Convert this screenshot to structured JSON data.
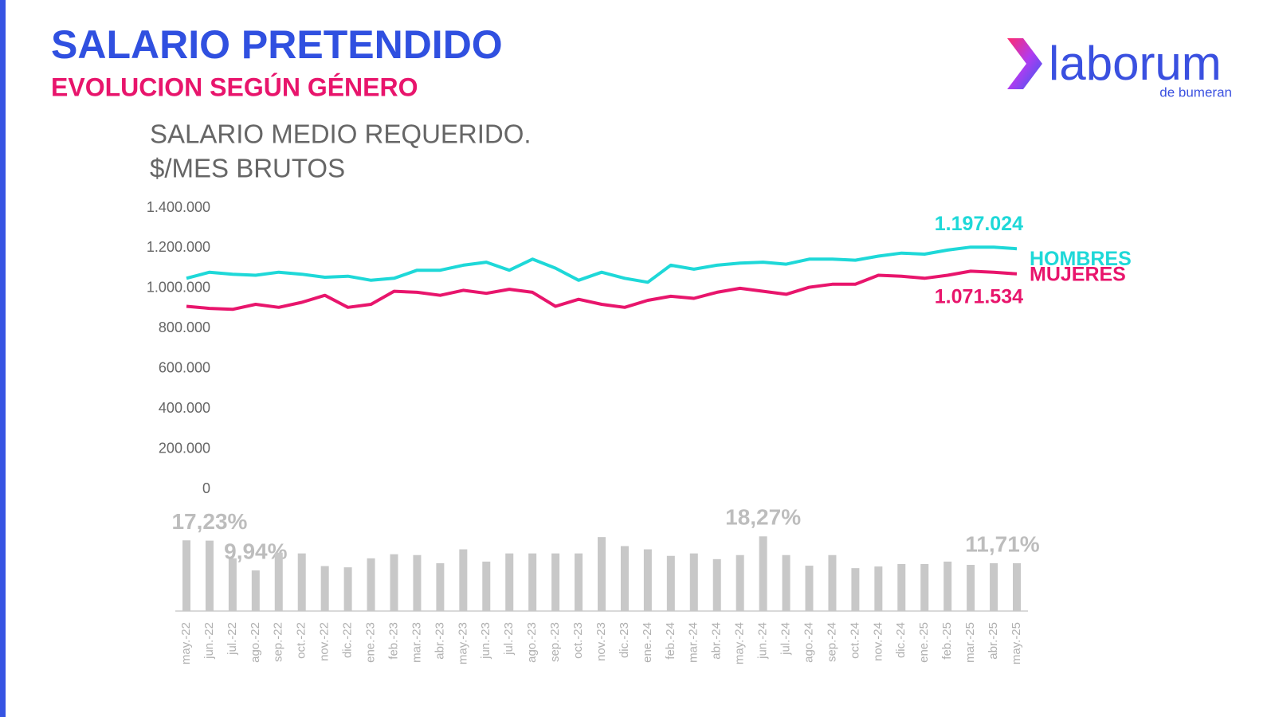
{
  "header": {
    "title": "SALARIO PRETENDIDO",
    "subtitle": "EVOLUCION SEGÚN GÉNERO"
  },
  "logo": {
    "name": "laborum",
    "tagline": "de bumeran"
  },
  "chart_data": [
    {
      "type": "line",
      "title": "SALARIO MEDIO REQUERIDO.",
      "subtitle": "$/MES BRUTOS",
      "ylim": [
        0,
        1400000
      ],
      "yticks": [
        0,
        {
          "value": 200000,
          "label": "200.000"
        },
        {
          "value": 400000,
          "label": "400.000"
        },
        {
          "value": 600000,
          "label": "600.000"
        },
        {
          "value": 800000,
          "label": "800.000"
        },
        {
          "value": 1000000,
          "label": "1.000.000"
        },
        {
          "value": 1200000,
          "label": "1.200.000"
        },
        {
          "value": 1400000,
          "label": "1.400.000"
        }
      ],
      "series": [
        {
          "name": "HOMBRES",
          "color": "#1ed8d8",
          "values": [
            1050000,
            1080000,
            1070000,
            1065000,
            1080000,
            1070000,
            1055000,
            1060000,
            1040000,
            1050000,
            1090000,
            1090000,
            1115000,
            1130000,
            1090000,
            1145000,
            1100000,
            1040000,
            1080000,
            1050000,
            1030000,
            1115000,
            1095000,
            1115000,
            1125000,
            1130000,
            1120000,
            1145000,
            1145000,
            1140000,
            1160000,
            1175000,
            1170000,
            1190000,
            1205000,
            1205000,
            1197024
          ],
          "value_labels": [
            null,
            null,
            null,
            null,
            null,
            null,
            null,
            null,
            null,
            null,
            null,
            null,
            null,
            null,
            null,
            null,
            null,
            null,
            null,
            null,
            null,
            null,
            null,
            null,
            null,
            null,
            null,
            null,
            null,
            null,
            null,
            null,
            null,
            null,
            null,
            null,
            "1.197.024"
          ]
        },
        {
          "name": "MUJERES",
          "color": "#e8156c",
          "values": [
            910000,
            900000,
            895000,
            920000,
            905000,
            930000,
            965000,
            905000,
            920000,
            985000,
            980000,
            965000,
            990000,
            975000,
            995000,
            980000,
            910000,
            945000,
            920000,
            905000,
            940000,
            960000,
            950000,
            980000,
            1000000,
            985000,
            970000,
            1005000,
            1020000,
            1020000,
            1065000,
            1060000,
            1050000,
            1065000,
            1085000,
            1080000,
            1071534
          ],
          "value_labels": [
            null,
            null,
            null,
            null,
            null,
            null,
            null,
            null,
            null,
            null,
            null,
            null,
            null,
            null,
            null,
            null,
            null,
            null,
            null,
            null,
            null,
            null,
            null,
            null,
            null,
            null,
            null,
            null,
            null,
            null,
            null,
            null,
            null,
            null,
            null,
            null,
            "1.071.534"
          ]
        }
      ]
    },
    {
      "type": "bar",
      "color": "#c8c8c8",
      "categories": [
        "may.-22",
        "jun.-22",
        "jul.-22",
        "ago.-22",
        "sep.-22",
        "oct.-22",
        "nov.-22",
        "dic.-22",
        "ene.-23",
        "feb.-23",
        "mar.-23",
        "abr.-23",
        "may.-23",
        "jun.-23",
        "jul.-23",
        "ago.-23",
        "sep.-23",
        "oct.-23",
        "nov.-23",
        "dic.-23",
        "ene.-24",
        "feb.-24",
        "mar.-24",
        "abr.-24",
        "may.-24",
        "jun.-24",
        "jul.-24",
        "ago.-24",
        "sep.-24",
        "oct.-24",
        "nov.-24",
        "dic.-24",
        "ene.-25",
        "feb.-25",
        "mar.-25",
        "abr.-25",
        "may.-25"
      ],
      "values": [
        17.3,
        17.23,
        12.9,
        9.94,
        14.3,
        14.1,
        11.0,
        10.7,
        12.9,
        13.9,
        13.7,
        11.7,
        15.1,
        12.1,
        14.1,
        14.1,
        14.1,
        14.1,
        18.1,
        15.9,
        15.1,
        13.5,
        14.1,
        12.7,
        13.7,
        18.27,
        13.7,
        11.1,
        13.7,
        10.5,
        10.9,
        11.5,
        11.5,
        12.1,
        11.3,
        11.7,
        11.71
      ],
      "value_labels": [
        null,
        "17,23%",
        null,
        "9,94%",
        null,
        null,
        null,
        null,
        null,
        null,
        null,
        null,
        null,
        null,
        null,
        null,
        null,
        null,
        null,
        null,
        null,
        null,
        null,
        null,
        null,
        "18,27%",
        null,
        null,
        null,
        null,
        null,
        null,
        null,
        null,
        null,
        null,
        "11,71%"
      ]
    }
  ]
}
